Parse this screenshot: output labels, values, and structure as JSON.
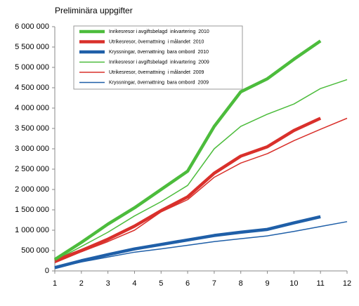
{
  "chart_data": {
    "type": "line",
    "title": "Preliminära uppgifter",
    "x": [
      1,
      2,
      3,
      4,
      5,
      6,
      7,
      8,
      9,
      10,
      11,
      12
    ],
    "xlim": [
      1,
      12
    ],
    "xticks": [
      1,
      2,
      3,
      4,
      5,
      6,
      7,
      8,
      9,
      10,
      11,
      12
    ],
    "ylim": [
      0,
      6000000
    ],
    "yticks": [
      {
        "value": 0,
        "label": "0"
      },
      {
        "value": 500000,
        "label": "500 000"
      },
      {
        "value": 1000000,
        "label": "1 000 000"
      },
      {
        "value": 1500000,
        "label": "1 500 000"
      },
      {
        "value": 2000000,
        "label": "2 000 000"
      },
      {
        "value": 2500000,
        "label": "2 500 000"
      },
      {
        "value": 3000000,
        "label": "3 000 000"
      },
      {
        "value": 3500000,
        "label": "3 500 000"
      },
      {
        "value": 4000000,
        "label": "4 000 000"
      },
      {
        "value": 4500000,
        "label": "4 500 000"
      },
      {
        "value": 5000000,
        "label": "5 000 000"
      },
      {
        "value": 5500000,
        "label": "5 500 000"
      },
      {
        "value": 6000000,
        "label": "6 000 000"
      }
    ],
    "legend": "top-left",
    "series": [
      {
        "name": "Inrikesresor i avgiftsbelagd  inkvartering  2010",
        "color": "#4cbc3c",
        "line_width": 4.5,
        "values": [
          280000,
          700000,
          1150000,
          1550000,
          2000000,
          2450000,
          3550000,
          4400000,
          4720000,
          5200000,
          5650000,
          null
        ]
      },
      {
        "name": "Utrikesresor, övernattning  i målandet  2010",
        "color": "#d9302b",
        "line_width": 4.5,
        "values": [
          250000,
          500000,
          780000,
          1100000,
          1480000,
          1820000,
          2400000,
          2820000,
          3050000,
          3450000,
          3750000,
          null
        ]
      },
      {
        "name": "Kryssningar, övernattning  bara ombord  2010",
        "color": "#1f5fa8",
        "line_width": 4.5,
        "values": [
          80000,
          250000,
          400000,
          540000,
          650000,
          760000,
          870000,
          950000,
          1020000,
          1180000,
          1330000,
          null
        ]
      },
      {
        "name": "Inrikesresor i avgiftsbelagd  inkvartering  2009",
        "color": "#4cbc3c",
        "line_width": 1.5,
        "values": [
          250000,
          600000,
          950000,
          1350000,
          1700000,
          2100000,
          3000000,
          3550000,
          3850000,
          4100000,
          4480000,
          4700000
        ]
      },
      {
        "name": "Utrikesresor, övernattning  i målandet  2009",
        "color": "#d9302b",
        "line_width": 1.5,
        "values": [
          200000,
          470000,
          720000,
          1000000,
          1450000,
          1750000,
          2300000,
          2650000,
          2880000,
          3200000,
          3480000,
          3750000
        ]
      },
      {
        "name": "Kryssningar, övernattning  bara ombord  2009",
        "color": "#1f5fa8",
        "line_width": 1.5,
        "values": [
          70000,
          220000,
          340000,
          460000,
          540000,
          630000,
          720000,
          790000,
          860000,
          970000,
          1090000,
          1210000
        ]
      }
    ]
  }
}
